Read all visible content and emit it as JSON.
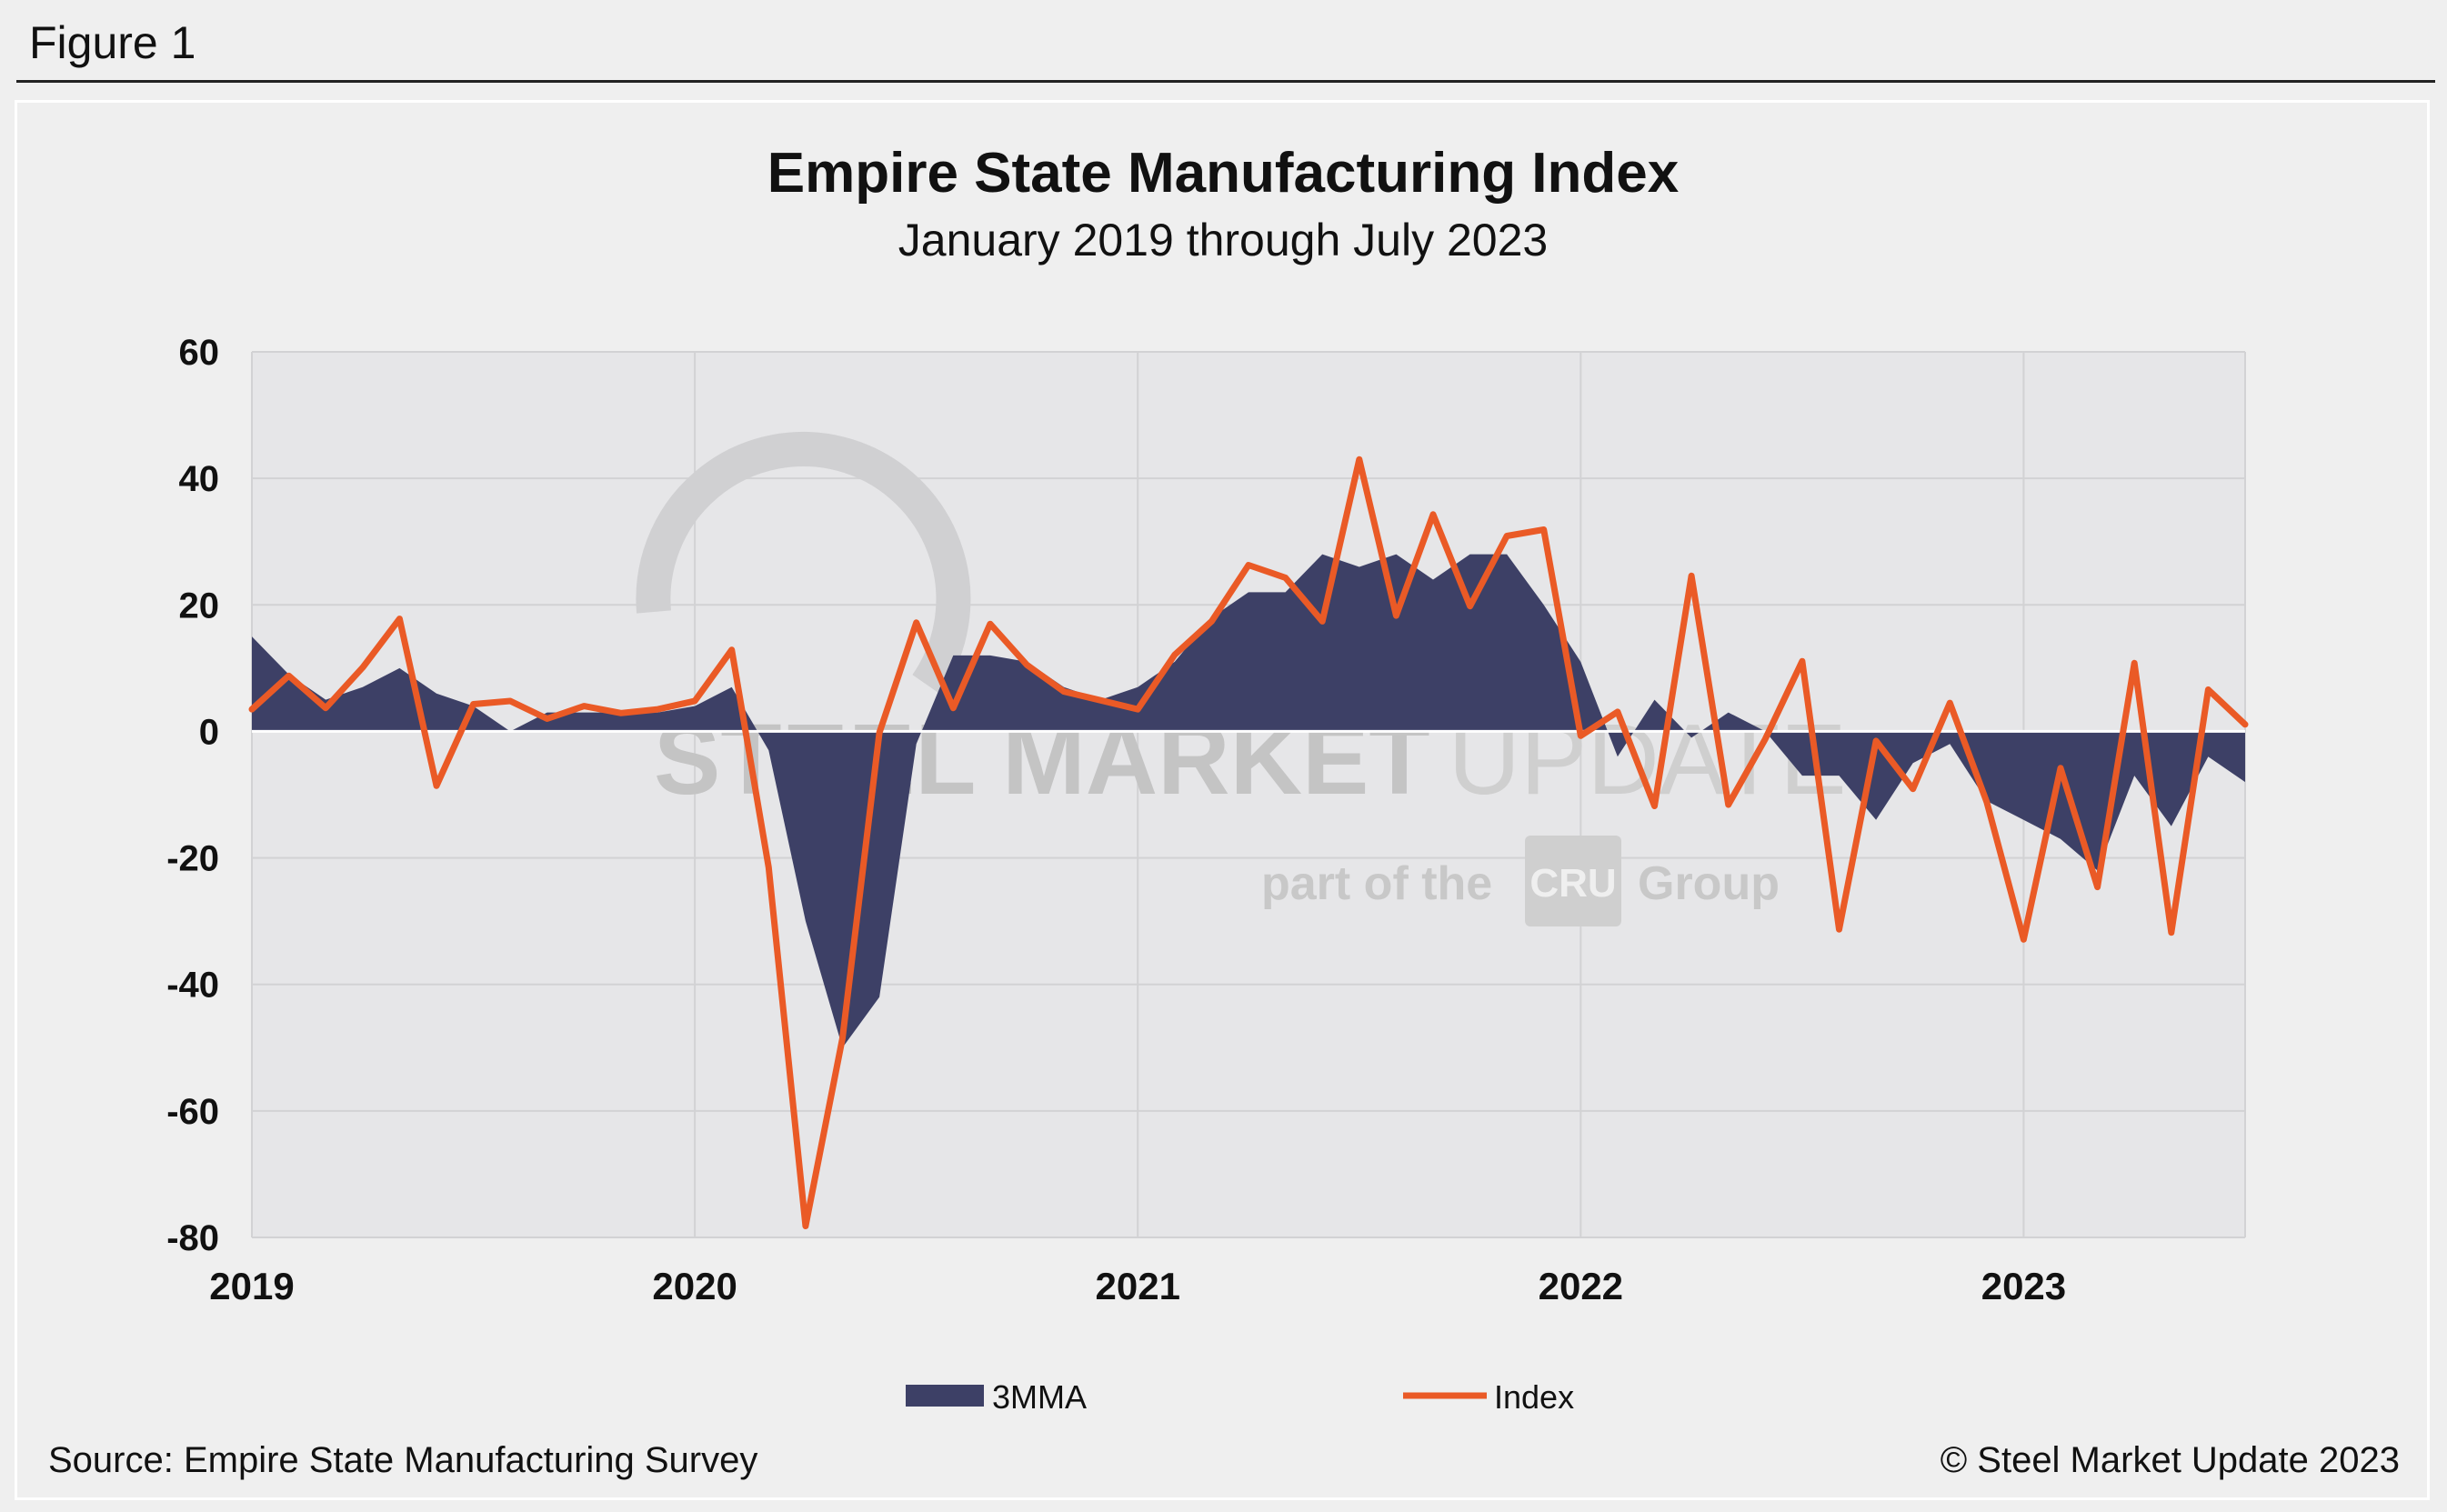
{
  "figure_label": "Figure 1",
  "watermark": {
    "brand_bold": "STEEL MARKET",
    "brand_light": "UPDATE",
    "part_of": "part of the",
    "logo": "CRU",
    "group": "Group"
  },
  "colors": {
    "area": "#3d4066",
    "line": "#ea5a26",
    "plot_bg": "#e6e6e8",
    "grid": "#d2d2d4"
  },
  "chart_data": {
    "type": "area+line",
    "title": "Empire State Manufacturing Index",
    "subtitle": "January 2019 through July 2023",
    "ylim": [
      -80,
      60
    ],
    "yticks": [
      "60",
      "40",
      "20",
      "0",
      "-20",
      "-40",
      "-60",
      "-80"
    ],
    "ytick_values": [
      60,
      40,
      20,
      0,
      -20,
      -40,
      -60,
      -80
    ],
    "xticks": [
      "2019",
      "2020",
      "2021",
      "2022",
      "2023"
    ],
    "xtick_month_index": [
      0,
      12,
      24,
      36,
      48
    ],
    "grid": true,
    "series": [
      {
        "name": "3MMA",
        "kind": "area",
        "values": [
          15,
          9,
          5,
          7,
          10,
          6,
          4,
          0,
          3,
          3,
          3,
          3,
          4,
          7,
          -3,
          -30,
          -50,
          -42,
          -2,
          12,
          12,
          11,
          7,
          5,
          7,
          11,
          18,
          22,
          22,
          28,
          26,
          28,
          24,
          28,
          28,
          20,
          11,
          -4,
          5,
          -1,
          3,
          0,
          -7,
          -7,
          -14,
          -5,
          -2,
          -11,
          -14,
          -17,
          -22,
          -7,
          -15,
          -4,
          -8
        ]
      },
      {
        "name": "Index",
        "kind": "line",
        "values": [
          3.5,
          8.8,
          3.7,
          10.1,
          17.8,
          -8.6,
          4.3,
          4.8,
          2.0,
          4.0,
          2.9,
          3.5,
          4.8,
          12.9,
          -21.5,
          -78.2,
          -48.5,
          -0.2,
          17.2,
          3.7,
          17.0,
          10.5,
          6.3,
          4.9,
          3.5,
          12.1,
          17.4,
          26.3,
          24.3,
          17.4,
          43.0,
          18.3,
          34.3,
          19.8,
          30.9,
          31.9,
          -0.7,
          3.1,
          -11.8,
          24.6,
          -11.6,
          -1.2,
          11.1,
          -31.3,
          -1.5,
          -9.1,
          4.5,
          -11.2,
          -32.9,
          -5.8,
          -24.6,
          10.8,
          -31.8,
          6.6,
          1.1
        ]
      }
    ],
    "legend": [
      {
        "label": "3MMA",
        "kind": "area"
      },
      {
        "label": "Index",
        "kind": "line"
      }
    ],
    "legend_placement": "bottom-center",
    "source": "Source: Empire State Manufacturing Survey",
    "copyright": "© Steel Market Update 2023"
  }
}
